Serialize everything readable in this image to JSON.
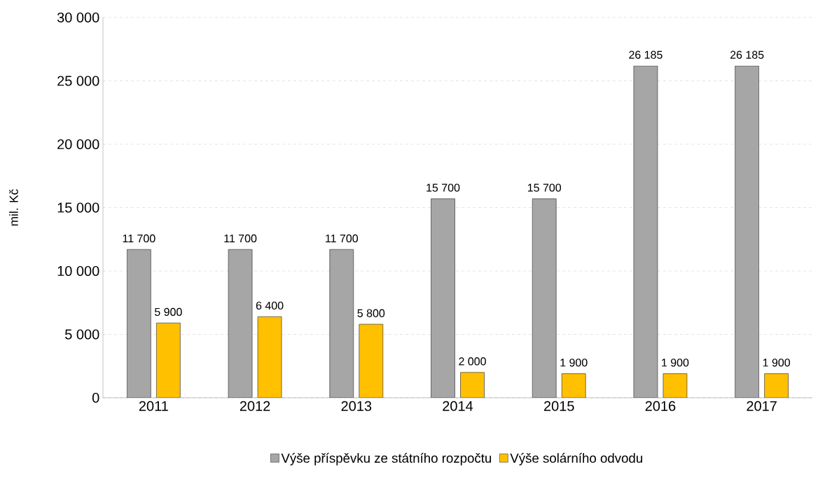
{
  "chart_data": {
    "type": "bar",
    "ylabel": "mil. Kč",
    "categories": [
      "2011",
      "2012",
      "2013",
      "2014",
      "2015",
      "2016",
      "2017"
    ],
    "series": [
      {
        "name": "Výše příspěvku ze státního rozpočtu",
        "color": "#a6a6a6",
        "values": [
          11700,
          11700,
          11700,
          15700,
          15700,
          26185,
          26185
        ],
        "value_labels": [
          "11 700",
          "11 700",
          "11 700",
          "15 700",
          "15 700",
          "26 185",
          "26 185"
        ]
      },
      {
        "name": "Výše solárního odvodu",
        "color": "#ffc000",
        "values": [
          5900,
          6400,
          5800,
          2000,
          1900,
          1900,
          1900
        ],
        "value_labels": [
          "5 900",
          "6 400",
          "5 800",
          "2 000",
          "1 900",
          "1 900",
          "1 900"
        ]
      }
    ],
    "ylim": [
      0,
      30000
    ],
    "yticks": [
      {
        "value": 0,
        "label": "0"
      },
      {
        "value": 5000,
        "label": "5 000"
      },
      {
        "value": 10000,
        "label": "10 000"
      },
      {
        "value": 15000,
        "label": "15 000"
      },
      {
        "value": 20000,
        "label": "20 000"
      },
      {
        "value": 25000,
        "label": "25 000"
      },
      {
        "value": 30000,
        "label": "30 000"
      }
    ],
    "grid": "y",
    "legend": "bottom"
  }
}
